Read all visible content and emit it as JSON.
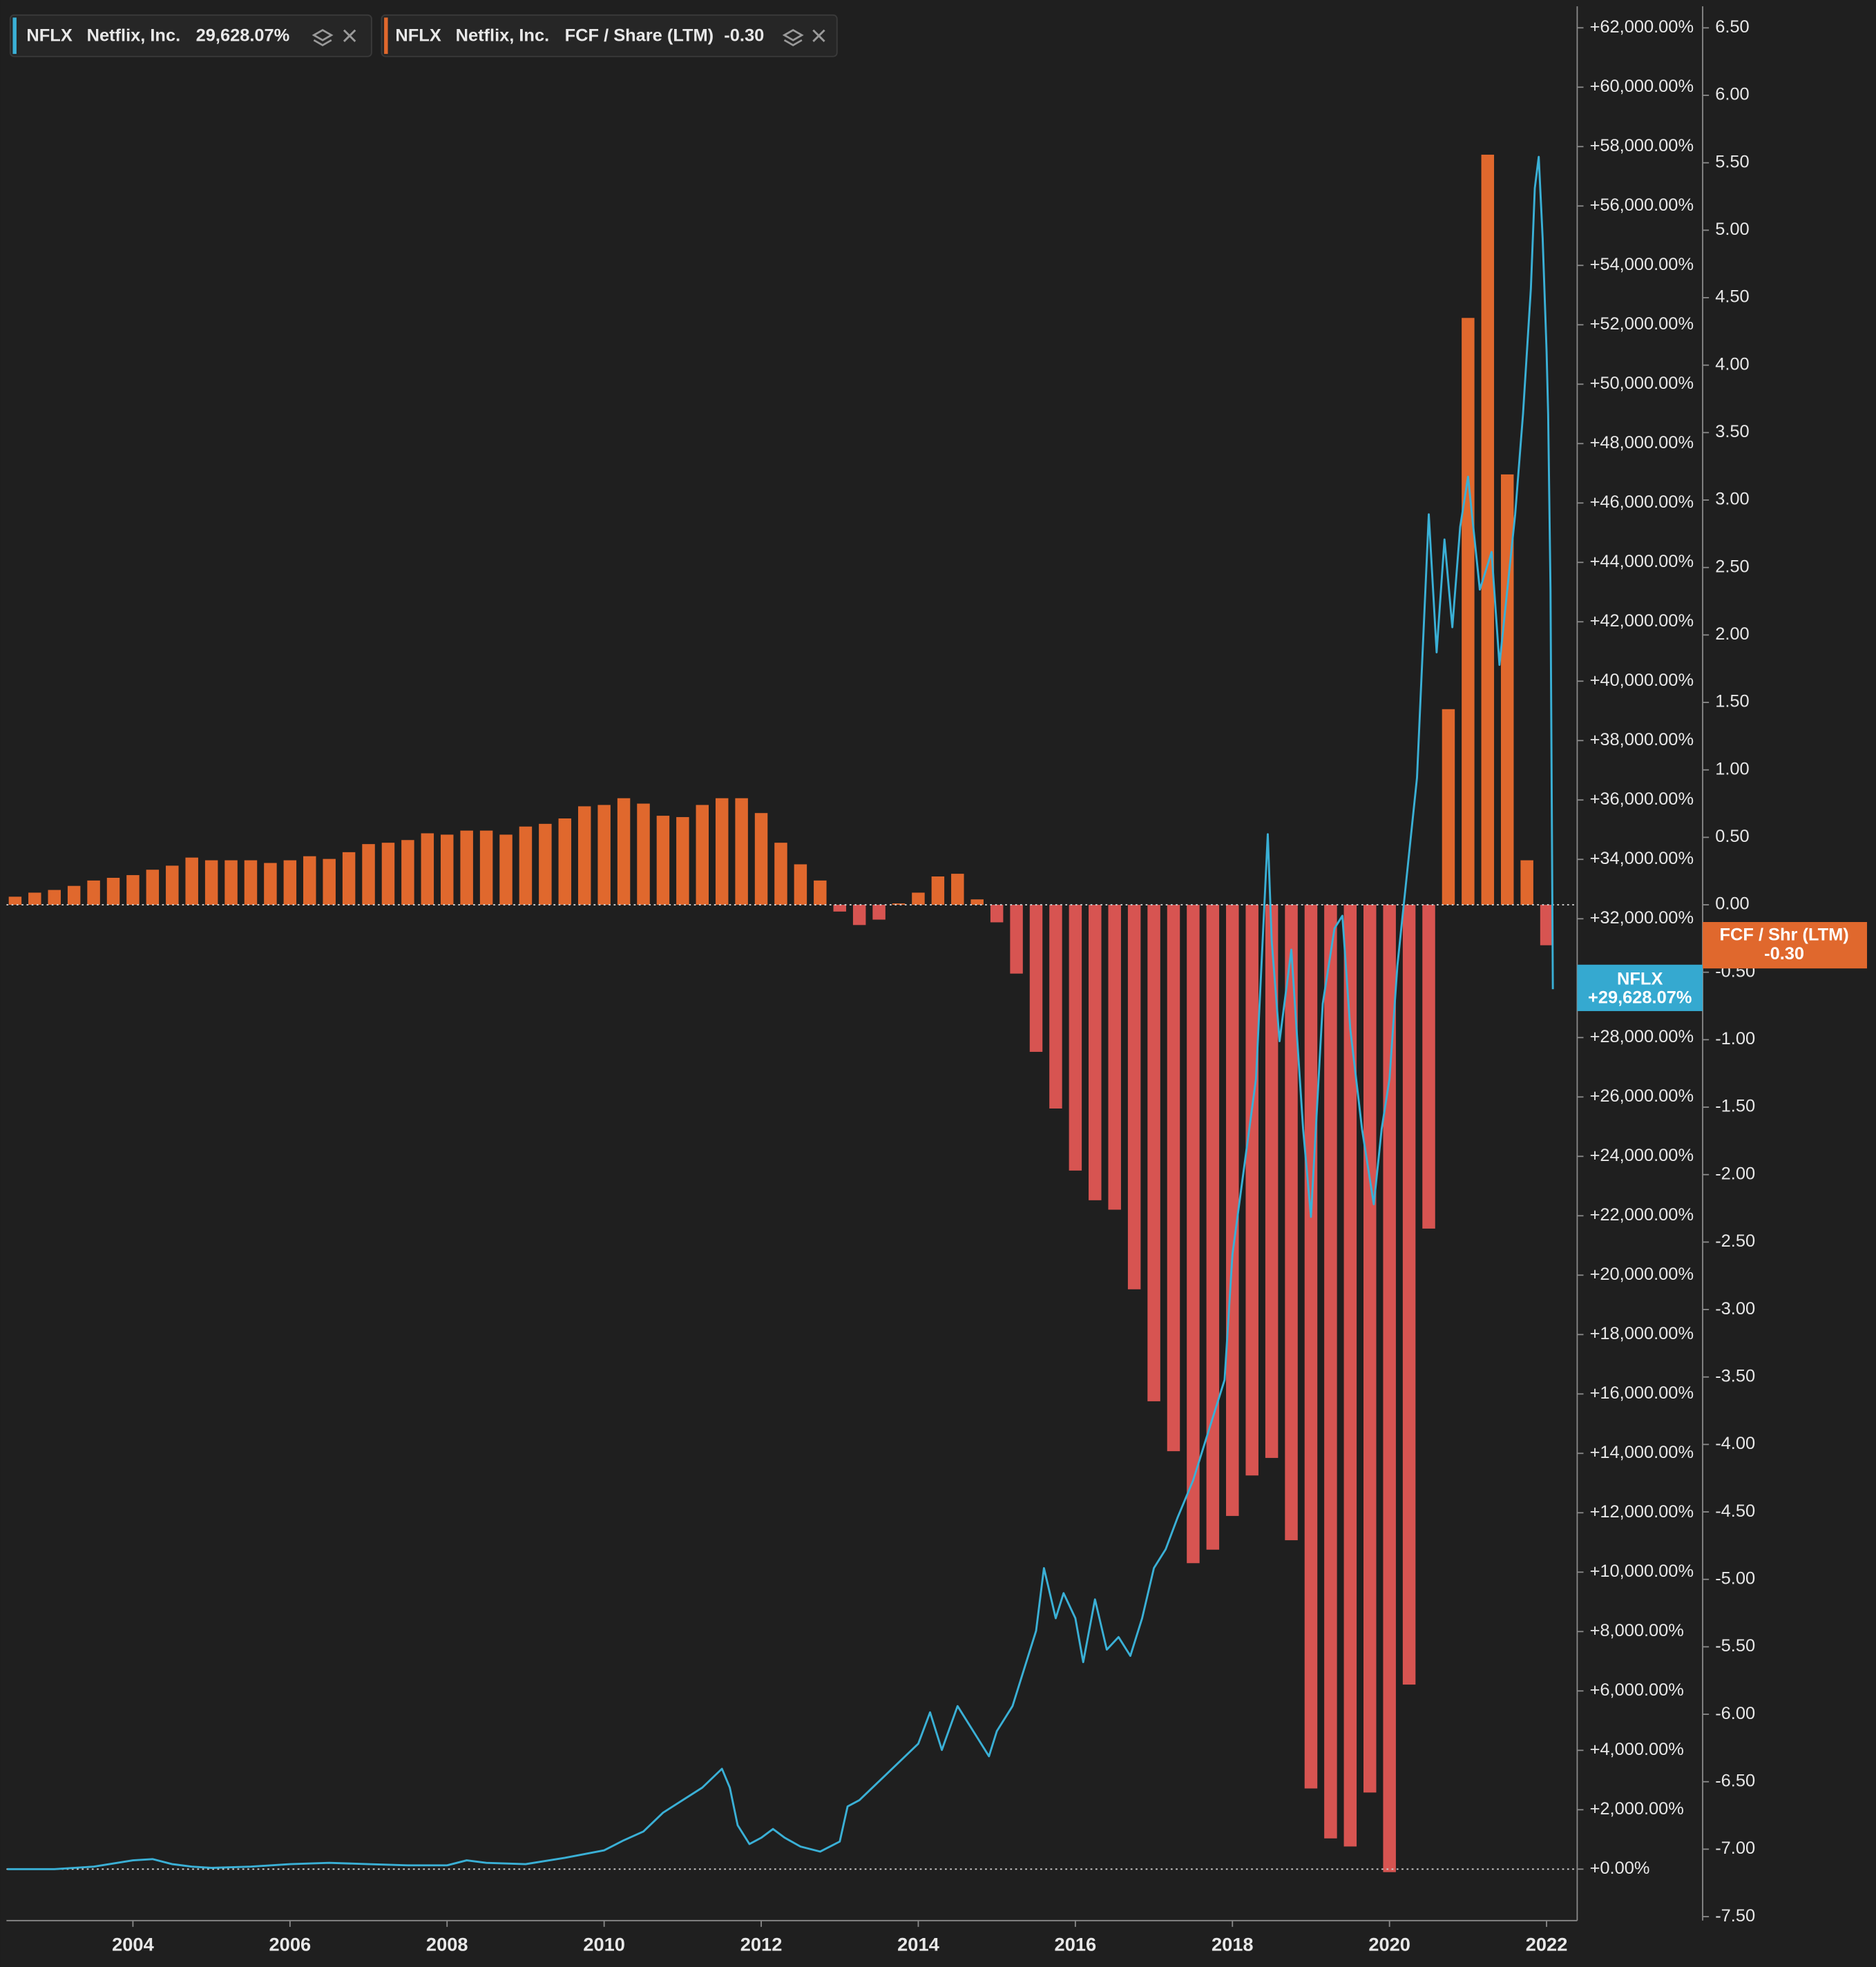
{
  "chart_data": {
    "type": "combo",
    "xlim": [
      2002.39,
      2022.39
    ],
    "xticks": [
      2004,
      2006,
      2008,
      2010,
      2012,
      2014,
      2016,
      2018,
      2020,
      2022
    ],
    "ylim": [
      -1690,
      62725
    ],
    "yticks": [
      {
        "value": 0,
        "label": "+0.00%"
      },
      {
        "value": 2000,
        "label": "+2,000.00%"
      },
      {
        "value": 4000,
        "label": "+4,000.00%"
      },
      {
        "value": 6000,
        "label": "+6,000.00%"
      },
      {
        "value": 8000,
        "label": "+8,000.00%"
      },
      {
        "value": 10000,
        "label": "+10,000.00%"
      },
      {
        "value": 12000,
        "label": "+12,000.00%"
      },
      {
        "value": 14000,
        "label": "+14,000.00%"
      },
      {
        "value": 16000,
        "label": "+16,000.00%"
      },
      {
        "value": 18000,
        "label": "+18,000.00%"
      },
      {
        "value": 20000,
        "label": "+20,000.00%"
      },
      {
        "value": 22000,
        "label": "+22,000.00%"
      },
      {
        "value": 24000,
        "label": "+24,000.00%"
      },
      {
        "value": 26000,
        "label": "+26,000.00%"
      },
      {
        "value": 28000,
        "label": "+28,000.00%"
      },
      {
        "value": 30000,
        "label": "+30,000.00%"
      },
      {
        "value": 32000,
        "label": "+32,000.00%"
      },
      {
        "value": 34000,
        "label": "+34,000.00%"
      },
      {
        "value": 36000,
        "label": "+36,000.00%"
      },
      {
        "value": 38000,
        "label": "+38,000.00%"
      },
      {
        "value": 40000,
        "label": "+40,000.00%"
      },
      {
        "value": 42000,
        "label": "+42,000.00%"
      },
      {
        "value": 44000,
        "label": "+44,000.00%"
      },
      {
        "value": 46000,
        "label": "+46,000.00%"
      },
      {
        "value": 48000,
        "label": "+48,000.00%"
      },
      {
        "value": 50000,
        "label": "+50,000.00%"
      },
      {
        "value": 52000,
        "label": "+52,000.00%"
      },
      {
        "value": 54000,
        "label": "+54,000.00%"
      },
      {
        "value": 56000,
        "label": "+56,000.00%"
      },
      {
        "value": 58000,
        "label": "+58,000.00%"
      },
      {
        "value": 60000,
        "label": "+60,000.00%"
      },
      {
        "value": 62000,
        "label": "+62,000.00%"
      }
    ],
    "y2lim": [
      -7.52,
      6.66
    ],
    "y2ticks": [
      {
        "value": 6.5,
        "label": "6.50"
      },
      {
        "value": 6,
        "label": "6.00"
      },
      {
        "value": 5.5,
        "label": "5.50"
      },
      {
        "value": 5,
        "label": "5.00"
      },
      {
        "value": 4.5,
        "label": "4.50"
      },
      {
        "value": 4,
        "label": "4.00"
      },
      {
        "value": 3.5,
        "label": "3.50"
      },
      {
        "value": 3,
        "label": "3.00"
      },
      {
        "value": 2.5,
        "label": "2.50"
      },
      {
        "value": 2,
        "label": "2.00"
      },
      {
        "value": 1.5,
        "label": "1.50"
      },
      {
        "value": 1,
        "label": "1.00"
      },
      {
        "value": 0.5,
        "label": "0.50"
      },
      {
        "value": 0,
        "label": "0.00"
      },
      {
        "value": -0.5,
        "label": "-0.50"
      },
      {
        "value": -1,
        "label": "-1.00"
      },
      {
        "value": -1.5,
        "label": "-1.50"
      },
      {
        "value": -2,
        "label": "-2.00"
      },
      {
        "value": -2.5,
        "label": "-2.50"
      },
      {
        "value": -3,
        "label": "-3.00"
      },
      {
        "value": -3.5,
        "label": "-3.50"
      },
      {
        "value": -4,
        "label": "-4.00"
      },
      {
        "value": -4.5,
        "label": "-4.50"
      },
      {
        "value": -5,
        "label": "-5.00"
      },
      {
        "value": -5.5,
        "label": "-5.50"
      },
      {
        "value": -6,
        "label": "-6.00"
      },
      {
        "value": -6.5,
        "label": "-6.50"
      },
      {
        "value": -7,
        "label": "-7.00"
      },
      {
        "value": -7.5,
        "label": "-7.50"
      }
    ],
    "series": [
      {
        "type": "line",
        "ticker": "NFLX",
        "name": "Netflix, Inc.",
        "last_label": "29,628.07%",
        "badge_label": "NFLX",
        "badge_value": "+29,628.07%",
        "color": "#3ab0d6",
        "axis": "y",
        "x": [
          2002.4,
          2003,
          2003.5,
          2004,
          2004.25,
          2004.5,
          2004.75,
          2005,
          2005.5,
          2006,
          2006.5,
          2007,
          2007.5,
          2008,
          2008.25,
          2008.5,
          2009,
          2009.5,
          2010,
          2010.25,
          2010.5,
          2010.75,
          2011,
          2011.25,
          2011.5,
          2011.6,
          2011.7,
          2011.85,
          2012,
          2012.15,
          2012.3,
          2012.5,
          2012.75,
          2013,
          2013.1,
          2013.25,
          2013.5,
          2013.75,
          2014,
          2014.15,
          2014.3,
          2014.5,
          2014.7,
          2014.9,
          2015,
          2015.2,
          2015.35,
          2015.5,
          2015.6,
          2015.75,
          2015.85,
          2016,
          2016.1,
          2016.25,
          2016.4,
          2016.55,
          2016.7,
          2016.85,
          2017,
          2017.15,
          2017.3,
          2017.5,
          2017.75,
          2017.9,
          2018,
          2018.15,
          2018.3,
          2018.45,
          2018.5,
          2018.6,
          2018.75,
          2018.9,
          2019,
          2019.15,
          2019.3,
          2019.4,
          2019.5,
          2019.65,
          2019.8,
          2019.9,
          2020,
          2020.1,
          2020.25,
          2020.35,
          2020.5,
          2020.6,
          2020.7,
          2020.8,
          2020.9,
          2021,
          2021.15,
          2021.3,
          2021.4,
          2021.5,
          2021.6,
          2021.7,
          2021.8,
          2021.85,
          2021.9,
          2021.95,
          2022,
          2022.02,
          2022.05,
          2022.08
        ],
        "values": [
          0,
          0,
          84,
          296,
          338,
          169,
          84,
          42,
          84,
          169,
          211,
          169,
          127,
          127,
          296,
          211,
          169,
          380,
          634,
          972,
          1267,
          1901,
          2323,
          2746,
          3379,
          2746,
          1478,
          845,
          1056,
          1352,
          1056,
          760,
          591,
          929,
          2112,
          2323,
          2957,
          3590,
          4224,
          5280,
          4013,
          5491,
          4646,
          3801,
          4646,
          5491,
          6758,
          8025,
          10137,
          8448,
          9293,
          8448,
          6970,
          9082,
          7392,
          7814,
          7181,
          8448,
          10137,
          10771,
          11827,
          13094,
          15206,
          16473,
          20697,
          23653,
          26610,
          34847,
          31256,
          27877,
          30960,
          24920,
          21964,
          29144,
          31678,
          32101,
          28299,
          24920,
          22386,
          24920,
          26610,
          30411,
          34213,
          36747,
          45617,
          40971,
          44772,
          41816,
          45195,
          46885,
          43083,
          44350,
          40548,
          43083,
          45617,
          48996,
          53220,
          56600,
          57656,
          54910,
          51109,
          48996,
          43083,
          29628.07
        ]
      },
      {
        "type": "bar",
        "ticker": "NFLX",
        "name": "Netflix, Inc.",
        "metric": "FCF / Share (LTM)",
        "last_label": "-0.30",
        "badge_label": "FCF / Shr (LTM)",
        "badge_value": "-0.30",
        "color": "#e0682d",
        "negative_color": "#d75451",
        "axis": "y2",
        "x": [
          2002.5,
          2002.75,
          2003,
          2003.25,
          2003.5,
          2003.75,
          2004,
          2004.25,
          2004.5,
          2004.75,
          2005,
          2005.25,
          2005.5,
          2005.75,
          2006,
          2006.25,
          2006.5,
          2006.75,
          2007,
          2007.25,
          2007.5,
          2007.75,
          2008,
          2008.25,
          2008.5,
          2008.75,
          2009,
          2009.25,
          2009.5,
          2009.75,
          2010,
          2010.25,
          2010.5,
          2010.75,
          2011,
          2011.25,
          2011.5,
          2011.75,
          2012,
          2012.25,
          2012.5,
          2012.75,
          2013,
          2013.25,
          2013.5,
          2013.75,
          2014,
          2014.25,
          2014.5,
          2014.75,
          2015,
          2015.25,
          2015.5,
          2015.75,
          2016,
          2016.25,
          2016.5,
          2016.75,
          2017,
          2017.25,
          2017.5,
          2017.75,
          2018,
          2018.25,
          2018.5,
          2018.75,
          2019,
          2019.25,
          2019.5,
          2019.75,
          2020,
          2020.25,
          2020.5,
          2020.75,
          2021,
          2021.25,
          2021.5,
          2021.75,
          2022
        ],
        "values": [
          0.06,
          0.09,
          0.11,
          0.14,
          0.18,
          0.2,
          0.22,
          0.26,
          0.29,
          0.35,
          0.33,
          0.33,
          0.33,
          0.31,
          0.33,
          0.36,
          0.34,
          0.39,
          0.45,
          0.46,
          0.48,
          0.53,
          0.52,
          0.55,
          0.55,
          0.52,
          0.58,
          0.6,
          0.64,
          0.73,
          0.74,
          0.79,
          0.75,
          0.66,
          0.65,
          0.74,
          0.79,
          0.79,
          0.68,
          0.46,
          0.3,
          0.18,
          -0.05,
          -0.15,
          -0.11,
          0.01,
          0.09,
          0.21,
          0.23,
          0.04,
          -0.13,
          -0.51,
          -1.09,
          -1.51,
          -1.97,
          -2.19,
          -2.26,
          -2.85,
          -3.68,
          -4.05,
          -4.88,
          -4.78,
          -4.53,
          -4.23,
          -4.1,
          -4.71,
          -6.55,
          -6.92,
          -6.98,
          -6.58,
          -7.17,
          -5.78,
          -2.4,
          1.45,
          4.35,
          5.56,
          3.19,
          0.33,
          -0.3
        ]
      }
    ]
  }
}
